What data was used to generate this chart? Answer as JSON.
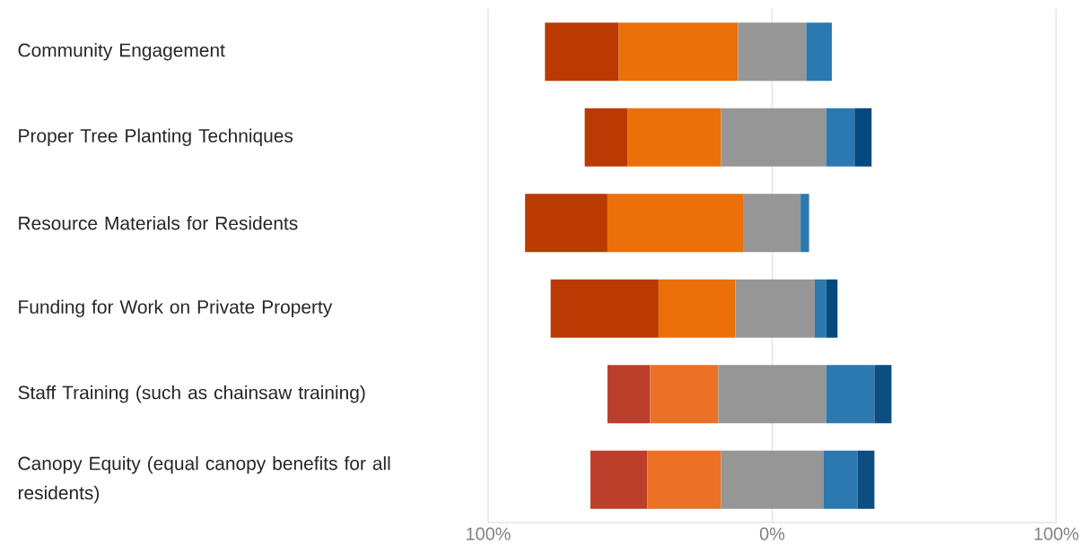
{
  "chart_data": {
    "type": "bar",
    "orientation": "horizontal",
    "categories": [
      "Community Engagement",
      "Proper Tree Planting Techniques",
      "Resource Materials for Residents",
      "Funding for Work on Private Property",
      "Staff Training (such as chainsaw training)",
      "Canopy Equity (equal canopy benefits for all residents)"
    ],
    "series": [
      {
        "colors": [
          "#bb3a02",
          "#bb3a02",
          "#bb3a02",
          "#bb3a02",
          "#bb3f2b",
          "#bb3f2b"
        ],
        "base": [
          -80,
          -66,
          -87,
          -78,
          -58,
          -64
        ],
        "values": [
          26,
          15,
          29,
          38,
          15,
          20
        ]
      },
      {
        "colors": [
          "#eb700a",
          "#eb700a",
          "#eb700a",
          "#eb700a",
          "#ea7125",
          "#ea7125"
        ],
        "base": [
          -54,
          -51,
          -58,
          -40,
          -43,
          -44
        ],
        "values": [
          42,
          33,
          48,
          27,
          24,
          26
        ]
      },
      {
        "colors": [
          "#969696",
          "#969696",
          "#969696",
          "#969696",
          "#969696",
          "#969696"
        ],
        "base": [
          -12,
          -18,
          -10,
          -13,
          -19,
          -18
        ],
        "values": [
          24,
          37,
          20,
          28,
          38,
          36
        ]
      },
      {
        "colors": [
          "#2b79b0",
          "#2b79b0",
          "#2b79b0",
          "#2b79b0",
          "#2b79b0",
          "#2b79b0"
        ],
        "base": [
          12,
          19,
          10,
          15,
          19,
          18
        ],
        "values": [
          9,
          10,
          3,
          4,
          17,
          12
        ]
      },
      {
        "colors": [
          "#04497f",
          "#04497f",
          "#04497f",
          "#04497f",
          "#0c4d82",
          "#0c4d82"
        ],
        "base": [
          null,
          29,
          null,
          19,
          36,
          30
        ],
        "values": [
          null,
          6,
          null,
          4,
          6,
          6
        ]
      }
    ],
    "xlim": [
      -100,
      100
    ],
    "xticks": [
      {
        "value": -100,
        "label": "100%"
      },
      {
        "value": 0,
        "label": "0%"
      },
      {
        "value": 100,
        "label": "100%"
      }
    ],
    "grid": "x"
  }
}
